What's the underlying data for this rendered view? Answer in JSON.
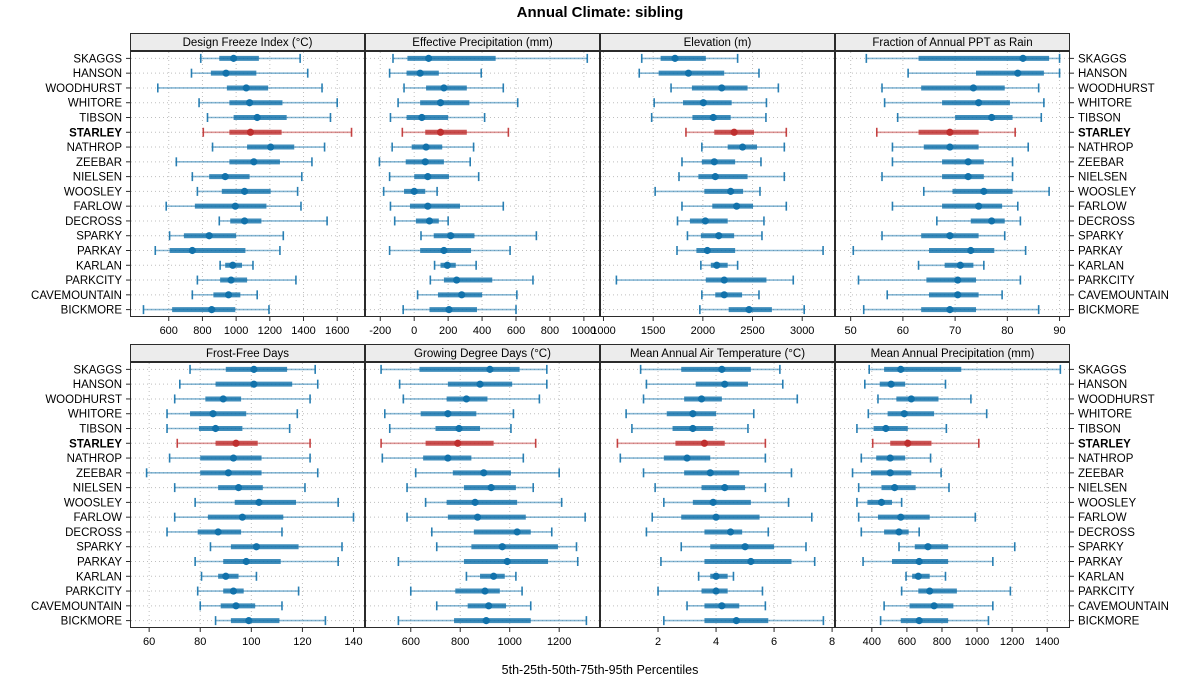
{
  "title": "Annual Climate: sibling",
  "caption": "5th-25th-50th-75th-95th Percentiles",
  "stations": [
    "SKAGGS",
    "HANSON",
    "WOODHURST",
    "WHITORE",
    "TIBSON",
    "STARLEY",
    "NATHROP",
    "ZEEBAR",
    "NIELSEN",
    "WOOSLEY",
    "FARLOW",
    "DECROSS",
    "SPARKY",
    "PARKAY",
    "KARLAN",
    "PARKCITY",
    "CAVEMOUNTAIN",
    "BICKMORE"
  ],
  "highlight_station": "STARLEY",
  "colors": {
    "series_normal": "#1272ab",
    "series_highlight": "#bf2f2f",
    "strip_bg": "#ececec",
    "panel_border": "#2b2b2b",
    "grid": "#bfbfbf",
    "text": "#000000"
  },
  "chart_data": {
    "type": "scatter",
    "subtype": "percentile-range-dotplot",
    "percentiles_shown": [
      5,
      25,
      50,
      75,
      95
    ],
    "legend_note": "5th-25th-50th-75th-95th Percentiles",
    "grid": "dotted",
    "layout": "2 rows x 4 columns, shared station category axis",
    "panels": [
      {
        "row": 0,
        "title": "Design Freeze Index (°C)",
        "ticks": [
          600,
          800,
          1000,
          1200,
          1400,
          1600
        ],
        "xlim": [
          370,
          1765
        ],
        "values": [
          [
            790,
            900,
            985,
            1135,
            1380
          ],
          [
            735,
            850,
            940,
            1120,
            1425
          ],
          [
            535,
            945,
            1060,
            1190,
            1510
          ],
          [
            780,
            960,
            1080,
            1275,
            1600
          ],
          [
            830,
            985,
            1125,
            1300,
            1560
          ],
          [
            805,
            960,
            1085,
            1270,
            1685
          ],
          [
            860,
            1065,
            1205,
            1345,
            1525
          ],
          [
            645,
            960,
            1105,
            1260,
            1450
          ],
          [
            740,
            840,
            935,
            1080,
            1390
          ],
          [
            770,
            915,
            1050,
            1205,
            1365
          ],
          [
            585,
            755,
            995,
            1180,
            1385
          ],
          [
            900,
            965,
            1050,
            1150,
            1540
          ],
          [
            605,
            690,
            840,
            1000,
            1280
          ],
          [
            520,
            605,
            740,
            1055,
            1260
          ],
          [
            905,
            935,
            980,
            1035,
            1100
          ],
          [
            770,
            905,
            970,
            1065,
            1355
          ],
          [
            740,
            865,
            955,
            1025,
            1125
          ],
          [
            450,
            620,
            855,
            995,
            1195
          ]
        ]
      },
      {
        "row": 0,
        "title": "Effective Precipitation (mm)",
        "ticks": [
          -200,
          0,
          200,
          400,
          600,
          800,
          1000
        ],
        "xlim": [
          -290,
          1095
        ],
        "values": [
          [
            -125,
            -40,
            85,
            480,
            1020
          ],
          [
            -145,
            -45,
            35,
            145,
            395
          ],
          [
            -60,
            70,
            175,
            310,
            525
          ],
          [
            -95,
            35,
            155,
            325,
            610
          ],
          [
            -140,
            -45,
            45,
            200,
            415
          ],
          [
            -70,
            65,
            155,
            310,
            555
          ],
          [
            -130,
            -15,
            70,
            165,
            350
          ],
          [
            -205,
            -50,
            65,
            175,
            330
          ],
          [
            -145,
            0,
            80,
            205,
            380
          ],
          [
            -180,
            -60,
            0,
            65,
            135
          ],
          [
            -140,
            -25,
            80,
            270,
            525
          ],
          [
            -115,
            10,
            90,
            145,
            200
          ],
          [
            40,
            115,
            215,
            355,
            720
          ],
          [
            -145,
            35,
            175,
            335,
            565
          ],
          [
            120,
            155,
            195,
            245,
            365
          ],
          [
            95,
            175,
            250,
            460,
            700
          ],
          [
            20,
            140,
            280,
            400,
            605
          ],
          [
            -65,
            90,
            205,
            370,
            600
          ]
        ]
      },
      {
        "row": 0,
        "title": "Elevation (m)",
        "ticks": [
          1000,
          1500,
          2000,
          2500,
          3000
        ],
        "xlim": [
          965,
          3330
        ],
        "values": [
          [
            1385,
            1575,
            1720,
            2030,
            2350
          ],
          [
            1360,
            1555,
            1855,
            2215,
            2565
          ],
          [
            1680,
            1890,
            2190,
            2450,
            2760
          ],
          [
            1510,
            1800,
            2005,
            2290,
            2640
          ],
          [
            1485,
            1895,
            2105,
            2280,
            2635
          ],
          [
            1830,
            2115,
            2315,
            2515,
            2840
          ],
          [
            1990,
            2250,
            2400,
            2545,
            2820
          ],
          [
            1790,
            1990,
            2115,
            2325,
            2585
          ],
          [
            1760,
            1955,
            2125,
            2450,
            2820
          ],
          [
            1520,
            2015,
            2280,
            2405,
            2575
          ],
          [
            1790,
            2095,
            2340,
            2505,
            2840
          ],
          [
            1745,
            1870,
            2025,
            2250,
            2615
          ],
          [
            1845,
            1980,
            2160,
            2315,
            2595
          ],
          [
            1740,
            1935,
            2045,
            2325,
            3210
          ],
          [
            1980,
            2080,
            2140,
            2250,
            2350
          ],
          [
            1130,
            2030,
            2215,
            2640,
            2910
          ],
          [
            1990,
            2125,
            2215,
            2395,
            2565
          ],
          [
            1970,
            2260,
            2465,
            2695,
            3020
          ]
        ]
      },
      {
        "row": 0,
        "title": "Fraction of Annual PPT as Rain",
        "ticks": [
          50,
          60,
          70,
          80,
          90
        ],
        "xlim": [
          47,
          92
        ],
        "values": [
          [
            53,
            63,
            83,
            88,
            90
          ],
          [
            61,
            74,
            82,
            87,
            90
          ],
          [
            56,
            63.5,
            73.5,
            79.5,
            86
          ],
          [
            56.5,
            67.5,
            74.5,
            80.5,
            87
          ],
          [
            59,
            70,
            77,
            81,
            86.5
          ],
          [
            55,
            63,
            69,
            74.5,
            81.5
          ],
          [
            58,
            64,
            69,
            74.5,
            84
          ],
          [
            58,
            67.5,
            72.5,
            75.5,
            81
          ],
          [
            56,
            67.5,
            72.5,
            75.5,
            81
          ],
          [
            64,
            69.5,
            75.5,
            81,
            88
          ],
          [
            58,
            67.5,
            74.5,
            79,
            82
          ],
          [
            66.5,
            73,
            77,
            79.5,
            82.5
          ],
          [
            56,
            63.5,
            69,
            74.5,
            79.5
          ],
          [
            50.5,
            65,
            73,
            77.5,
            83.5
          ],
          [
            63,
            68,
            71,
            73.5,
            75.5
          ],
          [
            51.5,
            64.5,
            70.5,
            74,
            82.5
          ],
          [
            57,
            65,
            70.5,
            74.5,
            79
          ],
          [
            52.5,
            63.5,
            69,
            74,
            86
          ]
        ]
      },
      {
        "row": 1,
        "title": "Frost-Free Days",
        "ticks": [
          60,
          80,
          100,
          120,
          140
        ],
        "xlim": [
          52.5,
          144.5
        ],
        "values": [
          [
            76,
            90,
            101,
            114,
            125
          ],
          [
            72,
            86,
            101,
            116,
            126
          ],
          [
            70,
            82,
            89,
            96,
            123
          ],
          [
            67,
            76,
            85,
            98,
            118
          ],
          [
            67,
            79.5,
            86,
            96.5,
            115
          ],
          [
            71,
            86,
            94,
            102.5,
            123
          ],
          [
            68,
            80,
            93,
            104,
            123
          ],
          [
            59,
            80,
            91,
            104,
            126
          ],
          [
            70,
            87,
            95,
            104.5,
            121
          ],
          [
            78,
            93.5,
            103,
            117.5,
            134
          ],
          [
            70,
            83,
            96.5,
            112.5,
            140
          ],
          [
            67,
            79,
            87,
            96,
            112
          ],
          [
            84,
            92,
            102,
            118.5,
            135.5
          ],
          [
            78,
            89,
            98,
            111.5,
            134
          ],
          [
            80.5,
            87,
            90,
            95,
            102
          ],
          [
            79,
            89,
            93,
            97,
            118.5
          ],
          [
            80,
            88,
            94,
            101.5,
            112
          ],
          [
            86,
            92,
            99,
            111,
            129
          ]
        ]
      },
      {
        "row": 1,
        "title": "Growing Degree Days (°C)",
        "ticks": [
          600,
          800,
          1000,
          1200
        ],
        "xlim": [
          415,
          1365
        ],
        "values": [
          [
            480,
            635,
            920,
            1040,
            1150
          ],
          [
            555,
            750,
            880,
            1010,
            1150
          ],
          [
            570,
            745,
            825,
            910,
            1120
          ],
          [
            495,
            640,
            750,
            865,
            1015
          ],
          [
            515,
            700,
            795,
            880,
            1005
          ],
          [
            480,
            660,
            790,
            935,
            1105
          ],
          [
            485,
            650,
            750,
            845,
            1055
          ],
          [
            620,
            770,
            895,
            1005,
            1200
          ],
          [
            585,
            815,
            925,
            1025,
            1095
          ],
          [
            660,
            745,
            860,
            1030,
            1210
          ],
          [
            585,
            750,
            870,
            1065,
            1305
          ],
          [
            685,
            855,
            1030,
            1085,
            1170
          ],
          [
            705,
            845,
            970,
            1195,
            1270
          ],
          [
            550,
            815,
            990,
            1155,
            1275
          ],
          [
            825,
            880,
            935,
            980,
            1025
          ],
          [
            600,
            780,
            900,
            960,
            1050
          ],
          [
            705,
            830,
            915,
            985,
            1085
          ],
          [
            550,
            775,
            905,
            1085,
            1310
          ]
        ]
      },
      {
        "row": 1,
        "title": "Mean Annual Air Temperature (°C)",
        "ticks": [
          2,
          4,
          6,
          8
        ],
        "xlim": [
          0,
          8.1
        ],
        "values": [
          [
            1.4,
            2.8,
            4.2,
            5.2,
            6.2
          ],
          [
            1.6,
            3.3,
            4.3,
            5.1,
            6.3
          ],
          [
            1.5,
            2.9,
            3.5,
            4.2,
            6.8
          ],
          [
            0.9,
            2.3,
            3.2,
            4.0,
            5.3
          ],
          [
            1.1,
            2.5,
            3.2,
            3.9,
            5.1
          ],
          [
            0.6,
            2.6,
            3.6,
            4.3,
            5.7
          ],
          [
            0.7,
            2.2,
            3.0,
            3.8,
            5.7
          ],
          [
            1.5,
            2.9,
            3.8,
            4.8,
            6.6
          ],
          [
            1.9,
            3.5,
            4.3,
            5.0,
            5.7
          ],
          [
            2.2,
            3.2,
            3.9,
            5.2,
            6.5
          ],
          [
            1.8,
            2.8,
            4.0,
            5.5,
            7.3
          ],
          [
            1.6,
            3.6,
            4.5,
            4.9,
            5.8
          ],
          [
            2.8,
            3.8,
            5.0,
            6.0,
            7.1
          ],
          [
            2.1,
            3.6,
            5.2,
            6.6,
            7.4
          ],
          [
            3.4,
            3.8,
            4.0,
            4.4,
            4.6
          ],
          [
            2.0,
            3.5,
            4.0,
            4.4,
            5.6
          ],
          [
            3.0,
            3.6,
            4.2,
            4.8,
            5.7
          ],
          [
            2.2,
            3.6,
            4.7,
            5.8,
            7.7
          ]
        ]
      },
      {
        "row": 1,
        "title": "Mean Annual Precipitation (mm)",
        "ticks": [
          400,
          600,
          800,
          1000,
          1200,
          1400
        ],
        "xlim": [
          190,
          1530
        ],
        "values": [
          [
            385,
            470,
            565,
            910,
            1475
          ],
          [
            360,
            445,
            510,
            590,
            820
          ],
          [
            435,
            540,
            625,
            780,
            965
          ],
          [
            380,
            490,
            585,
            755,
            1055
          ],
          [
            315,
            410,
            480,
            605,
            825
          ],
          [
            405,
            505,
            605,
            740,
            1010
          ],
          [
            340,
            425,
            505,
            590,
            735
          ],
          [
            290,
            395,
            505,
            625,
            795
          ],
          [
            325,
            455,
            530,
            650,
            840
          ],
          [
            315,
            375,
            455,
            515,
            570
          ],
          [
            325,
            435,
            565,
            730,
            990
          ],
          [
            340,
            470,
            555,
            610,
            670
          ],
          [
            555,
            645,
            720,
            835,
            1215
          ],
          [
            350,
            515,
            670,
            835,
            1090
          ],
          [
            595,
            630,
            665,
            730,
            820
          ],
          [
            570,
            665,
            730,
            885,
            1190
          ],
          [
            470,
            615,
            755,
            865,
            1090
          ],
          [
            450,
            565,
            670,
            835,
            1065
          ]
        ]
      }
    ]
  }
}
